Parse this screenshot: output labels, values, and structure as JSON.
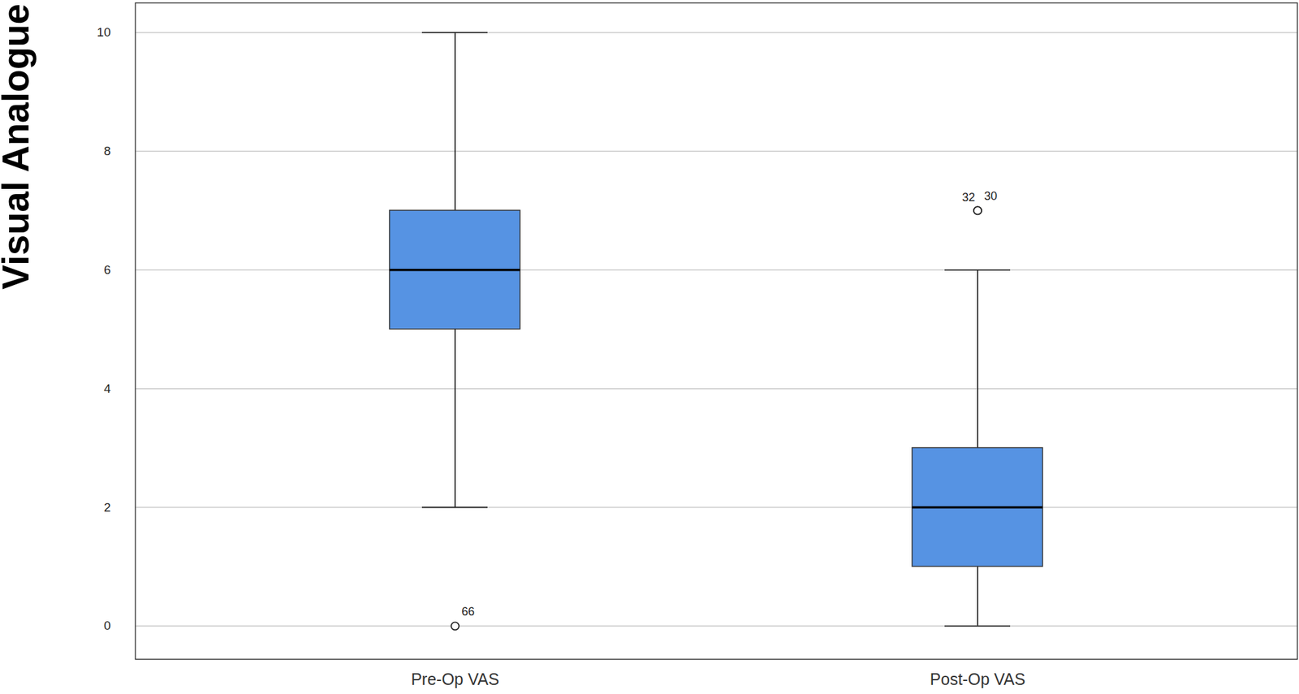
{
  "chart_data": {
    "type": "boxplot",
    "y_label": "Visual Analogue Scale",
    "categories": [
      "Pre-Op VAS",
      "Post-Op VAS"
    ],
    "stats": [
      {
        "whisker_low": 2,
        "q1": 5,
        "median": 6,
        "q3": 7,
        "whisker_high": 10
      },
      {
        "whisker_low": 0,
        "q1": 1,
        "median": 2,
        "q3": 3,
        "whisker_high": 6
      }
    ],
    "outliers": [
      [
        {
          "value": 0,
          "label": "66"
        }
      ],
      [
        {
          "value": 7,
          "label": "32"
        },
        {
          "value": 7,
          "label": "30"
        }
      ]
    ],
    "color": "#5693e3",
    "ylim": [
      -0.56,
      10.5
    ],
    "yticks": [
      0,
      2,
      4,
      6,
      8,
      10
    ],
    "grid": true
  }
}
